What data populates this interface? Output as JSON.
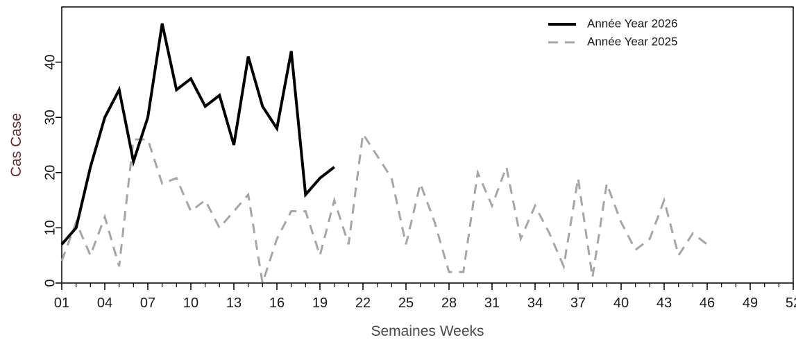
{
  "chart_data": {
    "type": "line",
    "xlabel": "Semaines Weeks",
    "ylabel": "Cas Case",
    "xlim": [
      1,
      52
    ],
    "ylim": [
      0,
      50
    ],
    "x_tick_labels": [
      "01",
      "04",
      "07",
      "10",
      "13",
      "16",
      "19",
      "22",
      "25",
      "28",
      "31",
      "34",
      "37",
      "40",
      "43",
      "46",
      "49",
      "52"
    ],
    "x_ticks_minor_every": 1,
    "y_ticks": [
      0,
      10,
      20,
      30,
      40
    ],
    "grid": false,
    "legend_position": "top-right",
    "series": [
      {
        "name": "Année Year 2026",
        "color": "#000000",
        "style": "solid",
        "x": [
          1,
          2,
          3,
          4,
          5,
          6,
          7,
          8,
          9,
          10,
          11,
          12,
          13,
          14,
          15,
          16,
          17,
          18,
          19,
          20
        ],
        "y": [
          7,
          10,
          21,
          30,
          35,
          22,
          30,
          47,
          35,
          37,
          32,
          34,
          25,
          41,
          32,
          28,
          42,
          16,
          19,
          21
        ]
      },
      {
        "name": "Année Year 2025",
        "color": "#a6a6a6",
        "style": "dashed",
        "x": [
          1,
          2,
          3,
          4,
          5,
          6,
          7,
          8,
          9,
          10,
          11,
          12,
          13,
          14,
          15,
          16,
          17,
          18,
          19,
          20,
          21,
          22,
          23,
          24,
          25,
          26,
          27,
          28,
          29,
          30,
          31,
          32,
          33,
          34,
          35,
          36,
          37,
          38,
          39,
          40,
          41,
          42,
          43,
          44,
          45,
          46
        ],
        "y": [
          4,
          11,
          5,
          12,
          3,
          26,
          26,
          18,
          19,
          13,
          15,
          10,
          13,
          16,
          0,
          8,
          13,
          13,
          5,
          15,
          7,
          27,
          23,
          19,
          7,
          18,
          11,
          2,
          2,
          20,
          14,
          21,
          8,
          14,
          9,
          3,
          19,
          1,
          18,
          11,
          6,
          8,
          15,
          5,
          9,
          7
        ]
      }
    ]
  }
}
